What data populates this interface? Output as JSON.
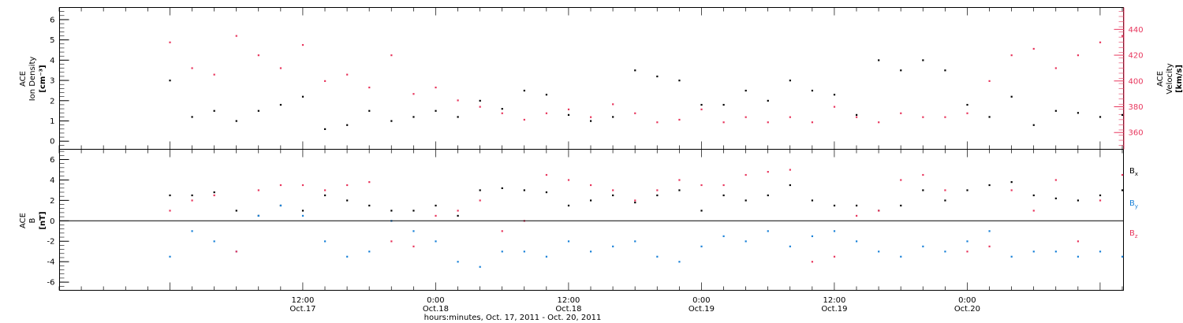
{
  "chart_data": [
    {
      "type": "scatter",
      "panel": "top",
      "left_axis_label": [
        "ACE",
        "Ion Density",
        "[cm⁻³]"
      ],
      "right_axis_label": [
        "ACE",
        "Velocity",
        "[km/s]"
      ],
      "left_ylim": [
        -0.4,
        6.6
      ],
      "right_ylim": [
        347,
        457
      ],
      "left_ticks": [
        "0",
        "1",
        "2",
        "3",
        "4",
        "5",
        "6"
      ],
      "right_ticks": [
        "360",
        "380",
        "400",
        "420",
        "440"
      ],
      "grid": false,
      "series": [
        {
          "name": "Ion Density",
          "axis": "left",
          "color": "#000000",
          "x": [
            0,
            2,
            4,
            6,
            8,
            10,
            12,
            14,
            16,
            18,
            20,
            22,
            24,
            26,
            28,
            30,
            32,
            34,
            36,
            38,
            40,
            42,
            44,
            46,
            48,
            50,
            52,
            54,
            56,
            58,
            60,
            62,
            64,
            66,
            68,
            70,
            72,
            74,
            76,
            78,
            80,
            82,
            84,
            86
          ],
          "y": [
            3.0,
            1.2,
            1.5,
            1.0,
            1.5,
            1.8,
            2.2,
            0.6,
            0.8,
            1.5,
            1.0,
            1.2,
            1.5,
            1.2,
            2.0,
            1.6,
            2.5,
            2.3,
            1.3,
            1.0,
            1.2,
            3.5,
            3.2,
            3.0,
            1.8,
            1.8,
            2.5,
            2.0,
            3.0,
            2.5,
            2.3,
            1.3,
            4.0,
            3.5,
            4.0,
            3.5,
            1.8,
            1.2,
            2.2,
            0.8,
            1.5,
            1.4,
            1.2,
            1.3
          ]
        },
        {
          "name": "Velocity",
          "axis": "right",
          "color": "#e8365d",
          "x": [
            0,
            2,
            4,
            6,
            8,
            10,
            12,
            14,
            16,
            18,
            20,
            22,
            24,
            26,
            28,
            30,
            32,
            34,
            36,
            38,
            40,
            42,
            44,
            46,
            48,
            50,
            52,
            54,
            56,
            58,
            60,
            62,
            64,
            66,
            68,
            70,
            72,
            74,
            76,
            78,
            80,
            82,
            84,
            86
          ],
          "y": [
            430,
            410,
            405,
            435,
            420,
            410,
            428,
            400,
            405,
            395,
            420,
            390,
            395,
            385,
            380,
            375,
            370,
            375,
            378,
            372,
            382,
            375,
            368,
            370,
            378,
            368,
            372,
            368,
            372,
            368,
            380,
            372,
            368,
            375,
            372,
            372,
            375,
            400,
            420,
            425,
            410,
            420,
            430,
            435
          ]
        }
      ]
    },
    {
      "type": "scatter",
      "panel": "bottom",
      "left_axis_label": [
        "ACE",
        "B",
        "[nT]"
      ],
      "ylim": [
        -6.8,
        7.0
      ],
      "ticks": [
        "-6",
        "-4",
        "-2",
        "0",
        "2",
        "4",
        "6"
      ],
      "zero_line": true,
      "grid": false,
      "legend_placement": "right",
      "series": [
        {
          "name": "B",
          "subscript": "x",
          "color": "#000000",
          "x": [
            0,
            2,
            4,
            6,
            8,
            10,
            12,
            14,
            16,
            18,
            20,
            22,
            24,
            26,
            28,
            30,
            32,
            34,
            36,
            38,
            40,
            42,
            44,
            46,
            48,
            50,
            52,
            54,
            56,
            58,
            60,
            62,
            64,
            66,
            68,
            70,
            72,
            74,
            76,
            78,
            80,
            82,
            84,
            86
          ],
          "y": [
            2.5,
            2.5,
            2.8,
            1.0,
            0.5,
            1.5,
            1.0,
            2.5,
            2.0,
            1.5,
            1.0,
            1.0,
            1.5,
            0.5,
            3.0,
            3.2,
            3.0,
            2.8,
            1.5,
            2.0,
            2.5,
            1.8,
            2.5,
            3.0,
            1.0,
            2.5,
            2.0,
            2.5,
            3.5,
            2.0,
            1.5,
            1.5,
            1.0,
            1.5,
            3.0,
            2.0,
            3.0,
            3.5,
            3.8,
            2.5,
            2.2,
            2.0,
            2.5,
            3.0
          ]
        },
        {
          "name": "B",
          "subscript": "y",
          "color": "#1a82d8",
          "x": [
            0,
            2,
            4,
            6,
            8,
            10,
            12,
            14,
            16,
            18,
            20,
            22,
            24,
            26,
            28,
            30,
            32,
            34,
            36,
            38,
            40,
            42,
            44,
            46,
            48,
            50,
            52,
            54,
            56,
            58,
            60,
            62,
            64,
            66,
            68,
            70,
            72,
            74,
            76,
            78,
            80,
            82,
            84,
            86
          ],
          "y": [
            -3.5,
            -1.0,
            -2.0,
            -3.0,
            0.5,
            1.5,
            0.5,
            -2.0,
            -3.5,
            -3.0,
            0.0,
            -1.0,
            -2.0,
            -4.0,
            -4.5,
            -3.0,
            -3.0,
            -3.5,
            -2.0,
            -3.0,
            -2.5,
            -2.0,
            -3.5,
            -4.0,
            -2.5,
            -1.5,
            -2.0,
            -1.0,
            -2.5,
            -1.5,
            -1.0,
            -2.0,
            -3.0,
            -3.5,
            -2.5,
            -3.0,
            -2.0,
            -1.0,
            -3.5,
            -3.0,
            -3.0,
            -3.5,
            -3.0,
            -3.5
          ]
        },
        {
          "name": "B",
          "subscript": "z",
          "color": "#e8365d",
          "x": [
            0,
            2,
            4,
            6,
            8,
            10,
            12,
            14,
            16,
            18,
            20,
            22,
            24,
            26,
            28,
            30,
            32,
            34,
            36,
            38,
            40,
            42,
            44,
            46,
            48,
            50,
            52,
            54,
            56,
            58,
            60,
            62,
            64,
            66,
            68,
            70,
            72,
            74,
            76,
            78,
            80,
            82,
            84,
            86
          ],
          "y": [
            1.0,
            2.0,
            2.5,
            -3.0,
            3.0,
            3.5,
            3.5,
            3.0,
            3.5,
            3.8,
            -2.0,
            -2.5,
            0.5,
            1.0,
            2.0,
            -1.0,
            0.0,
            4.5,
            4.0,
            3.5,
            3.0,
            2.0,
            3.0,
            4.0,
            3.5,
            3.5,
            4.5,
            4.8,
            5.0,
            -4.0,
            -3.5,
            0.5,
            1.0,
            4.0,
            4.5,
            3.0,
            -3.0,
            -2.5,
            3.0,
            1.0,
            4.0,
            -2.0,
            2.0,
            4.5
          ]
        }
      ]
    }
  ],
  "x_axis": {
    "hour_ticks": [
      "12:00",
      "0:00",
      "12:00",
      "0:00",
      "12:00",
      "0:00"
    ],
    "date_ticks": [
      "Oct.17",
      "Oct.18",
      "Oct.18",
      "Oct.19",
      "Oct.19",
      "Oct.20"
    ],
    "title": "hours:minutes, Oct. 17, 2011 - Oct. 20, 2011"
  },
  "colors": {
    "black": "#000000",
    "pink": "#e8365d",
    "blue": "#1a82d8"
  }
}
